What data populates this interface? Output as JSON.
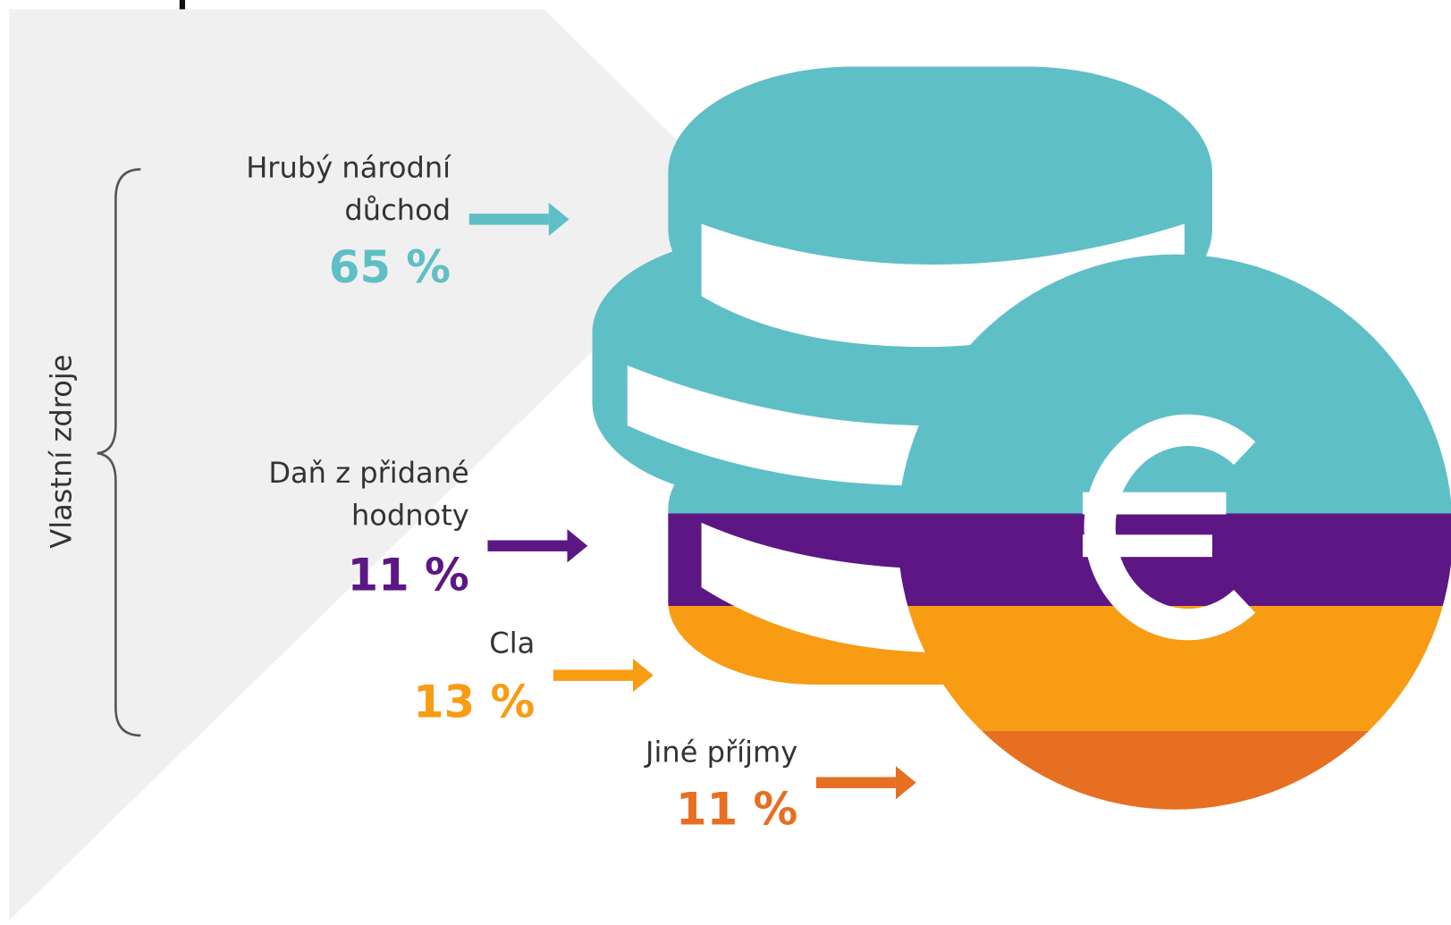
{
  "brace_label": "Vlastní zdroje",
  "items": [
    {
      "label": [
        "Hrubý národní",
        "důchod"
      ],
      "value": "65 %",
      "color": "#5fbfc7"
    },
    {
      "label": [
        "Daň z přidané",
        "hodnoty"
      ],
      "value": "11 %",
      "color": "#5c1784"
    },
    {
      "label": [
        "Cla"
      ],
      "value": "13 %",
      "color": "#f89c14"
    },
    {
      "label": [
        "Jiné příjmy"
      ],
      "value": "11 %",
      "color": "#e66f22"
    }
  ]
}
